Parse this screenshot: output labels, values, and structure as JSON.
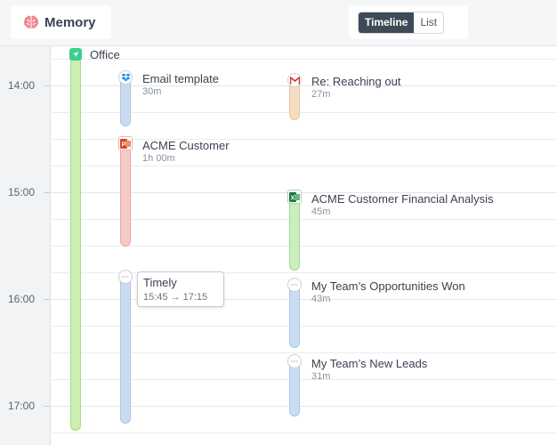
{
  "app": {
    "name": "Memory"
  },
  "view_toggle": {
    "options": [
      "Timeline",
      "List"
    ],
    "active": "Timeline"
  },
  "timeline": {
    "hours": [
      "14:00",
      "15:00",
      "16:00",
      "17:00"
    ],
    "events": {
      "office": {
        "title": "Office",
        "icon": "office-location-icon",
        "color": "#cbeeb1"
      },
      "email_template": {
        "title": "Email template",
        "duration": "30m",
        "icon": "dropbox-icon",
        "color": "#c9dcf1"
      },
      "re_reaching_out": {
        "title": "Re: Reaching out",
        "duration": "27m",
        "icon": "gmail-icon",
        "color": "#f6dcc0"
      },
      "acme_customer": {
        "title": "ACME Customer",
        "duration": "1h 00m",
        "icon": "powerpoint-icon",
        "color": "#f6c9c9"
      },
      "acme_financial": {
        "title": "ACME Customer Financial Analysis",
        "duration": "45m",
        "icon": "excel-icon",
        "color": "#c9eebf"
      },
      "timely": {
        "title": "Timely",
        "range": "15:45 → 17:15",
        "icon": "timely-icon",
        "color": "#c9dcf1"
      },
      "opportunities_won": {
        "title": "My Team’s Opportunities Won",
        "duration": "43m",
        "icon": "timely-icon",
        "color": "#c9dcf1"
      },
      "new_leads": {
        "title": "My Team’s New Leads",
        "duration": "31m",
        "icon": "timely-icon",
        "color": "#c9dcf1"
      }
    }
  }
}
